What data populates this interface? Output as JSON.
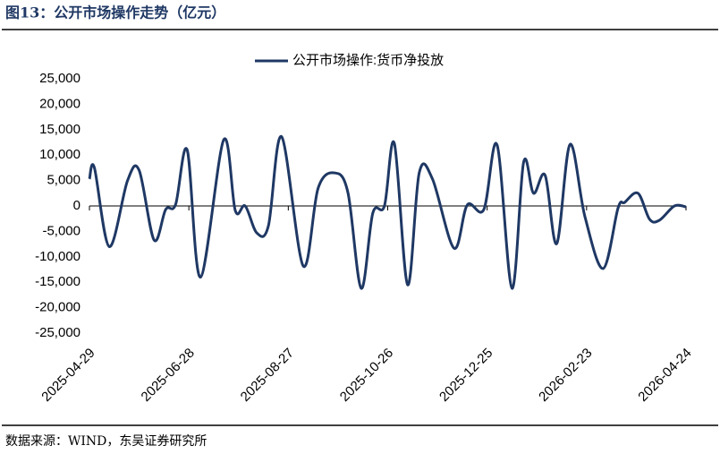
{
  "chart_data": {
    "type": "line",
    "title": "图13：公开市场操作走势（亿元）",
    "source": "数据来源：WIND，东吴证券研究所",
    "x": [
      "2025-04-29",
      "2025-05-02",
      "2025-05-11",
      "2025-05-22",
      "2025-05-29",
      "2025-06-07",
      "2025-06-14",
      "2025-06-20",
      "2025-06-27",
      "2025-07-05",
      "2025-07-19",
      "2025-07-26",
      "2025-08-01",
      "2025-08-08",
      "2025-08-15",
      "2025-08-23",
      "2025-09-05",
      "2025-09-14",
      "2025-09-24",
      "2025-10-02",
      "2025-10-10",
      "2025-10-17",
      "2025-10-24",
      "2025-10-30",
      "2025-11-07",
      "2025-11-14",
      "2025-11-22",
      "2025-12-05",
      "2025-12-13",
      "2025-12-23",
      "2025-12-31",
      "2026-01-09",
      "2026-01-16",
      "2026-01-22",
      "2026-01-29",
      "2026-02-05",
      "2026-02-13",
      "2026-02-22",
      "2026-03-05",
      "2026-03-14",
      "2026-03-18",
      "2026-03-26",
      "2026-04-02",
      "2026-04-08",
      "2026-04-17",
      "2026-04-24"
    ],
    "series": [
      {
        "name": "公开市场操作:货币净投放",
        "color": "#1f3864",
        "values": [
          5300,
          7500,
          -8000,
          5000,
          7000,
          -6700,
          -700,
          300,
          11000,
          -14000,
          13000,
          -900,
          0,
          -5300,
          -3900,
          13600,
          -11800,
          3500,
          6500,
          2600,
          -16200,
          -1400,
          0,
          12300,
          -15500,
          6500,
          5300,
          -8300,
          200,
          -700,
          12000,
          -16200,
          8600,
          2500,
          6000,
          -7400,
          12100,
          -2100,
          -12300,
          -400,
          700,
          2500,
          -2600,
          -2800,
          0,
          -200
        ]
      }
    ],
    "xlim": [
      "2025-04-29",
      "2026-04-24"
    ],
    "xticks": [
      "2025-04-29",
      "2025-06-28",
      "2025-08-27",
      "2025-10-26",
      "2025-12-25",
      "2026-02-23",
      "2026-04-24"
    ],
    "ylim": [
      -25000,
      25000
    ],
    "yticks": [
      {
        "value": -25000,
        "label": "-25,000"
      },
      {
        "value": -20000,
        "label": "-20,000"
      },
      {
        "value": -15000,
        "label": "-15,000"
      },
      {
        "value": -10000,
        "label": "-10,000"
      },
      {
        "value": -5000,
        "label": "-5,000"
      },
      0,
      {
        "value": 5000,
        "label": "5,000"
      },
      {
        "value": 10000,
        "label": "10,000"
      },
      {
        "value": 15000,
        "label": "15,000"
      },
      {
        "value": 20000,
        "label": "20,000"
      },
      {
        "value": 25000,
        "label": "25,000"
      }
    ],
    "legend": "top"
  }
}
